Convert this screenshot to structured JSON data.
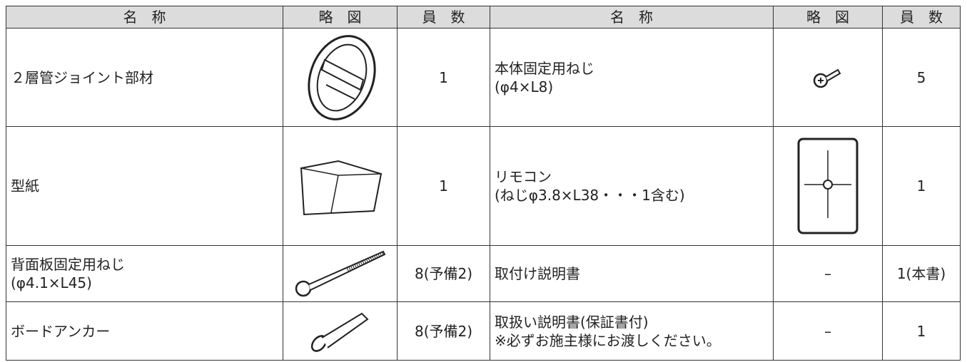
{
  "table": {
    "header": [
      "名　称",
      "略　図",
      "員　数",
      "名　称",
      "略　図",
      "員　数"
    ],
    "rows": [
      {
        "name": [
          "２層管ジョイント部材"
        ],
        "count": "1",
        "name2": [
          "本体固定用ねじ",
          "(φ4×L8)"
        ],
        "count2": "5"
      },
      {
        "name": [
          "型紙"
        ],
        "count": "1",
        "name2": [
          "リモコン",
          "(ねじφ3.8×L38・・・1含む)"
        ],
        "count2": "1"
      },
      {
        "name": [
          "背面板固定用ねじ",
          "(φ4.1×L45)"
        ],
        "count": "8(予備2)",
        "name2": [
          "取付け説明書"
        ],
        "figure2": "–",
        "count2": "1(本書)"
      },
      {
        "name": [
          "ボードアンカー"
        ],
        "count": "8(予備2)",
        "name2": [
          "取扱い説明書(保証書付)",
          "※必ずお施主様にお渡しください。"
        ],
        "figure2": "–",
        "count2": "1"
      }
    ]
  }
}
